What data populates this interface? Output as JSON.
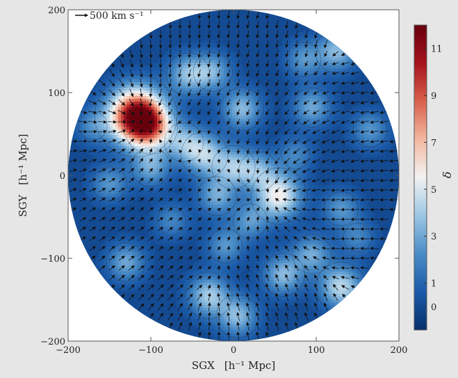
{
  "chart_data": {
    "type": "heatmap",
    "title": "",
    "xlabel": "SGX",
    "xlabel_unit": "[h⁻¹ Mpc]",
    "ylabel": "SGY",
    "ylabel_unit": "[h⁻¹ Mpc]",
    "xlim": [
      -200,
      200
    ],
    "ylim": [
      -200,
      200
    ],
    "x_ticks": [
      -200,
      -100,
      0,
      100,
      200
    ],
    "y_ticks": [
      -200,
      -100,
      0,
      100,
      200
    ],
    "x_tick_labels": [
      "−200",
      "−100",
      "0",
      "100",
      "200"
    ],
    "y_tick_labels": [
      "−200",
      "−100",
      "0",
      "100",
      "200"
    ],
    "field_radius": 200,
    "grid": false,
    "arrow_key": {
      "label": "500 km s⁻¹",
      "speed": 500
    },
    "colorbar": {
      "label": "δ",
      "min": -1,
      "max": 12,
      "ticks": [
        0,
        1,
        3,
        5,
        7,
        9,
        11
      ],
      "tick_labels": [
        "0",
        "1",
        "3",
        "5",
        "7",
        "9",
        "11"
      ],
      "colors": [
        "#08306b",
        "#1b5aa8",
        "#4a8cc6",
        "#9cc6e4",
        "#f2f2f2",
        "#f3b8a0",
        "#d9604c",
        "#a5131d",
        "#67000d"
      ]
    },
    "background_delta": 0,
    "density_peaks": [
      {
        "x": -118,
        "y": 72,
        "delta": 11.5,
        "label": ""
      },
      {
        "x": -100,
        "y": 58,
        "delta": 5.0,
        "label": ""
      },
      {
        "x": -55,
        "y": 122,
        "delta": 3.5,
        "label": ""
      },
      {
        "x": -25,
        "y": 125,
        "delta": 3.0,
        "label": ""
      },
      {
        "x": 10,
        "y": 80,
        "delta": 3.5,
        "label": ""
      },
      {
        "x": 95,
        "y": 82,
        "delta": 3.0,
        "label": ""
      },
      {
        "x": 125,
        "y": 150,
        "delta": 3.5,
        "label": ""
      },
      {
        "x": 85,
        "y": 140,
        "delta": 2.5,
        "label": ""
      },
      {
        "x": 165,
        "y": 55,
        "delta": 2.5,
        "label": ""
      },
      {
        "x": -60,
        "y": 40,
        "delta": 3.0,
        "label": ""
      },
      {
        "x": -35,
        "y": 25,
        "delta": 4.0,
        "label": ""
      },
      {
        "x": 0,
        "y": 10,
        "delta": 3.5,
        "label": ""
      },
      {
        "x": 30,
        "y": 5,
        "delta": 3.0,
        "label": ""
      },
      {
        "x": -100,
        "y": 10,
        "delta": 3.0,
        "label": ""
      },
      {
        "x": -150,
        "y": -10,
        "delta": 2.5,
        "label": ""
      },
      {
        "x": 55,
        "y": -25,
        "delta": 5.5,
        "label": ""
      },
      {
        "x": -20,
        "y": -25,
        "delta": 3.0,
        "label": ""
      },
      {
        "x": 20,
        "y": -55,
        "delta": 2.5,
        "label": ""
      },
      {
        "x": -10,
        "y": -85,
        "delta": 2.5,
        "label": ""
      },
      {
        "x": 60,
        "y": -120,
        "delta": 3.5,
        "label": ""
      },
      {
        "x": 95,
        "y": -95,
        "delta": 3.0,
        "label": ""
      },
      {
        "x": 130,
        "y": -135,
        "delta": 4.5,
        "label": ""
      },
      {
        "x": -30,
        "y": -145,
        "delta": 4.0,
        "label": ""
      },
      {
        "x": 5,
        "y": -170,
        "delta": 3.5,
        "label": ""
      },
      {
        "x": -130,
        "y": -105,
        "delta": 3.0,
        "label": ""
      },
      {
        "x": 130,
        "y": -40,
        "delta": 2.5,
        "label": ""
      },
      {
        "x": -170,
        "y": 60,
        "delta": 2.0,
        "label": ""
      },
      {
        "x": 150,
        "y": -75,
        "delta": 2.0,
        "label": ""
      },
      {
        "x": -75,
        "y": -55,
        "delta": 2.0,
        "label": ""
      },
      {
        "x": 75,
        "y": 25,
        "delta": 2.0,
        "label": ""
      }
    ],
    "velocity_attractors": [
      {
        "x": -118,
        "y": 72,
        "strength": 1.0
      },
      {
        "x": 55,
        "y": -25,
        "strength": 0.8
      },
      {
        "x": 130,
        "y": -135,
        "strength": 0.7
      },
      {
        "x": 125,
        "y": 150,
        "strength": 0.6
      },
      {
        "x": -30,
        "y": -145,
        "strength": 0.6
      }
    ]
  }
}
